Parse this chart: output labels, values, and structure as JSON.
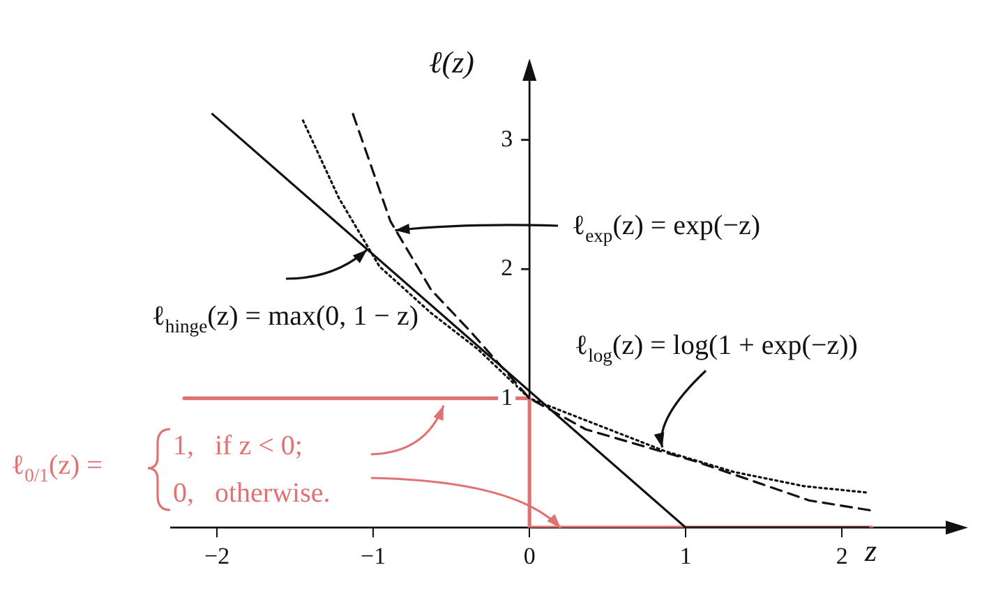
{
  "chart_data": {
    "type": "line",
    "xlabel": "z",
    "ylabel": "ℓ(z)",
    "xlim": [
      -2.3,
      2.7
    ],
    "ylim": [
      0,
      3.5
    ],
    "xticks": [
      {
        "value": -2,
        "label": "−2"
      },
      {
        "value": -1,
        "label": "−1"
      },
      0,
      1,
      2
    ],
    "yticks": [
      1,
      2,
      3
    ],
    "grid": false,
    "legend": false,
    "marker": "none",
    "series": [
      {
        "color": "#111111",
        "line_style": "solid",
        "x": [
          -2.03,
          1,
          2.17
        ],
        "values": [
          3.2,
          0,
          0
        ]
      },
      {
        "color": "#111111",
        "line_style": "dashed",
        "x": [
          -1.13,
          -0.89,
          -0.63,
          -0.38,
          0,
          0.36,
          1.07,
          1.79,
          2.2
        ],
        "values": [
          3.2,
          2.37,
          1.84,
          1.52,
          1,
          0.76,
          0.51,
          0.21,
          0.13
        ]
      },
      {
        "color": "#111111",
        "line_style": "dotted",
        "x": [
          -1.45,
          -1.22,
          -0.96,
          -0.63,
          -0.33,
          0,
          0.36,
          0.87,
          1.31,
          1.76,
          2.17
        ],
        "values": [
          3.15,
          2.55,
          2.02,
          1.66,
          1.38,
          1,
          0.83,
          0.59,
          0.43,
          0.32,
          0.27
        ]
      },
      {
        "color": "#e07272",
        "line_style": "solid",
        "x": [
          -2.21,
          0,
          0,
          2.19
        ],
        "values": [
          1,
          1,
          0,
          0
        ]
      }
    ],
    "annotations": [
      {
        "text": "ℓ$_{exp}$(z) = exp(−z)",
        "x": -0.86,
        "y": 2.3
      },
      {
        "text": "ℓ$_{hinge}$(z) = max(0, 1 − z)",
        "x": -1.04,
        "y": 2.15
      },
      {
        "text": "ℓ$_{log}$(z) = log(1 + exp(−z))",
        "x": 0.85,
        "y": 0.62
      },
      "ℓ$_{0/1}$(z) =",
      "1,   if z < 0;",
      "0,   otherwise."
    ]
  }
}
